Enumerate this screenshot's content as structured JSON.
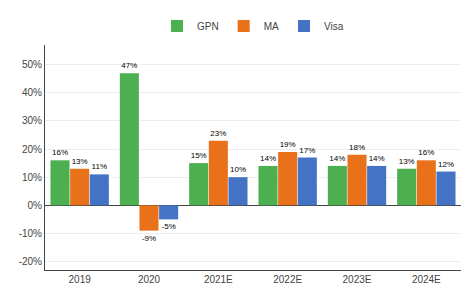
{
  "chart_data": {
    "type": "bar",
    "categories": [
      "2019",
      "2020",
      "2021E",
      "2022E",
      "2023E",
      "2024E"
    ],
    "series": [
      {
        "name": "GPN",
        "color": "#4CAF50",
        "values": [
          16,
          47,
          15,
          14,
          14,
          13
        ],
        "value_labels": [
          "16%",
          "47%",
          "15%",
          "14%",
          "14%",
          "13%"
        ]
      },
      {
        "name": "MA",
        "color": "#E8711A",
        "values": [
          13,
          -9,
          23,
          19,
          18,
          16
        ],
        "value_labels": [
          "13%",
          "-9%",
          "23%",
          "19%",
          "18%",
          "16%"
        ]
      },
      {
        "name": "Visa",
        "color": "#4472C4",
        "values": [
          11,
          -5,
          10,
          17,
          14,
          12
        ],
        "value_labels": [
          "11%",
          "-5%",
          "10%",
          "17%",
          "14%",
          "12%"
        ]
      }
    ],
    "ylim": [
      -23,
      57
    ],
    "yticks": [
      {
        "value": -20,
        "label": "-20%"
      },
      {
        "value": -10,
        "label": "-10%"
      },
      {
        "value": 0,
        "label": "0%"
      },
      {
        "value": 10,
        "label": "10%"
      },
      {
        "value": 20,
        "label": "20%"
      },
      {
        "value": 30,
        "label": "30%"
      },
      {
        "value": 40,
        "label": "40%"
      },
      {
        "value": 50,
        "label": "50%"
      }
    ],
    "grid": true,
    "legend": "top",
    "data_labels": true
  }
}
